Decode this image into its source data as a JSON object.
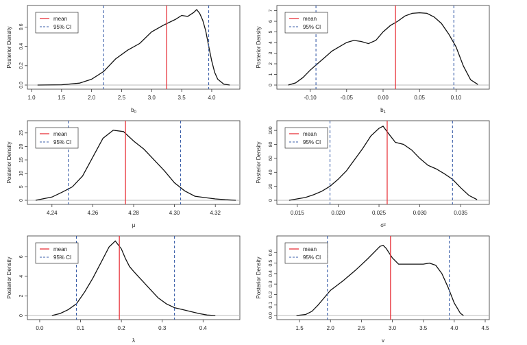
{
  "colors": {
    "density": "#111111",
    "mean": "#e8333a",
    "ci": "#3a5ea8",
    "baseline": "#b8b8b8"
  },
  "legend": {
    "mean_label": "mean",
    "ci_label": "95% CI"
  },
  "chart_data": [
    {
      "type": "line",
      "panel": "b0",
      "xlabel": "b0",
      "ylabel": "Posterior Density",
      "xlim": [
        1.0,
        4.4
      ],
      "ylim": [
        0,
        0.78
      ],
      "xticks": [
        "1.0",
        "1.5",
        "2.0",
        "2.5",
        "3.0",
        "3.5",
        "4.0"
      ],
      "xtick_values": [
        1.0,
        1.5,
        2.0,
        2.5,
        3.0,
        3.5,
        4.0
      ],
      "yticks": [
        "0.0",
        "0.2",
        "0.4",
        "0.6"
      ],
      "ytick_values": [
        0,
        0.2,
        0.4,
        0.6
      ],
      "mean": 3.25,
      "ci": [
        2.2,
        3.95
      ],
      "series": [
        {
          "x": [
            1.1,
            1.5,
            1.8,
            2.0,
            2.2,
            2.4,
            2.6,
            2.8,
            3.0,
            3.2,
            3.4,
            3.5,
            3.6,
            3.7,
            3.75,
            3.8,
            3.85,
            3.9,
            3.95,
            4.0,
            4.05,
            4.1,
            4.2,
            4.3
          ],
          "y": [
            0,
            0.003,
            0.02,
            0.06,
            0.14,
            0.27,
            0.36,
            0.43,
            0.55,
            0.62,
            0.68,
            0.72,
            0.71,
            0.75,
            0.78,
            0.74,
            0.67,
            0.56,
            0.4,
            0.25,
            0.13,
            0.06,
            0.01,
            0
          ]
        }
      ]
    },
    {
      "type": "line",
      "panel": "b1",
      "xlabel": "b1",
      "ylabel": "Posterior Density",
      "xlim": [
        -0.14,
        0.14
      ],
      "ylim": [
        0,
        7.1
      ],
      "xticks": [
        "-0.10",
        "-0.05",
        "0.00",
        "0.05",
        "0.10"
      ],
      "xtick_values": [
        -0.1,
        -0.05,
        0,
        0.05,
        0.1
      ],
      "yticks": [
        "0",
        "1",
        "2",
        "3",
        "4",
        "5",
        "6",
        "7"
      ],
      "ytick_values": [
        0,
        1,
        2,
        3,
        4,
        5,
        6,
        7
      ],
      "mean": 0.017,
      "ci": [
        -0.092,
        0.097
      ],
      "series": [
        {
          "x": [
            -0.13,
            -0.12,
            -0.11,
            -0.1,
            -0.09,
            -0.08,
            -0.07,
            -0.06,
            -0.05,
            -0.04,
            -0.03,
            -0.02,
            -0.01,
            0,
            0.01,
            0.02,
            0.03,
            0.04,
            0.05,
            0.06,
            0.07,
            0.08,
            0.09,
            0.1,
            0.11,
            0.12,
            0.13
          ],
          "y": [
            0,
            0.2,
            0.7,
            1.4,
            2.0,
            2.6,
            3.2,
            3.6,
            4.0,
            4.2,
            4.1,
            3.9,
            4.2,
            5.0,
            5.6,
            6.0,
            6.5,
            6.75,
            6.8,
            6.75,
            6.4,
            5.8,
            4.8,
            3.6,
            1.8,
            0.5,
            0.05
          ]
        }
      ]
    },
    {
      "type": "line",
      "panel": "mu",
      "xlabel": "μ",
      "ylabel": "Posterior Density",
      "xlim": [
        4.23,
        4.33
      ],
      "ylim": [
        0,
        28
      ],
      "xticks": [
        "4.24",
        "4.26",
        "4.28",
        "4.30",
        "4.32"
      ],
      "xtick_values": [
        4.24,
        4.26,
        4.28,
        4.3,
        4.32
      ],
      "yticks": [
        "0",
        "5",
        "10",
        "15",
        "20",
        "25"
      ],
      "ytick_values": [
        0,
        5,
        10,
        15,
        20,
        25
      ],
      "mean": 4.276,
      "ci": [
        4.248,
        4.303
      ],
      "series": [
        {
          "x": [
            4.232,
            4.24,
            4.245,
            4.25,
            4.255,
            4.26,
            4.265,
            4.27,
            4.275,
            4.28,
            4.285,
            4.29,
            4.295,
            4.3,
            4.305,
            4.31,
            4.315,
            4.32,
            4.325,
            4.33
          ],
          "y": [
            0,
            1.2,
            3.0,
            5.0,
            9.0,
            16.0,
            23.0,
            26.0,
            25.5,
            22.0,
            19.0,
            15.0,
            11.0,
            6.5,
            3.5,
            1.5,
            1.0,
            0.5,
            0.2,
            0
          ]
        }
      ]
    },
    {
      "type": "line",
      "panel": "sigma2",
      "xlabel": "σ²",
      "ylabel": "Posterior Density",
      "xlim": [
        0.013,
        0.038
      ],
      "ylim": [
        0,
        108
      ],
      "xticks": [
        "0.015",
        "0.020",
        "0.025",
        "0.030",
        "0.035"
      ],
      "xtick_values": [
        0.015,
        0.02,
        0.025,
        0.03,
        0.035
      ],
      "yticks": [
        "0",
        "20",
        "40",
        "60",
        "80",
        "100"
      ],
      "ytick_values": [
        0,
        20,
        40,
        60,
        80,
        100
      ],
      "mean": 0.026,
      "ci": [
        0.019,
        0.034
      ],
      "series": [
        {
          "x": [
            0.014,
            0.016,
            0.017,
            0.018,
            0.019,
            0.02,
            0.021,
            0.022,
            0.023,
            0.024,
            0.025,
            0.0255,
            0.026,
            0.027,
            0.028,
            0.029,
            0.03,
            0.031,
            0.032,
            0.033,
            0.034,
            0.035,
            0.036,
            0.037
          ],
          "y": [
            0,
            4,
            8,
            13,
            20,
            30,
            42,
            58,
            74,
            92,
            103,
            106,
            98,
            83,
            80,
            72,
            60,
            50,
            45,
            38,
            30,
            18,
            7,
            1
          ]
        }
      ]
    },
    {
      "type": "line",
      "panel": "lambda",
      "xlabel": "λ",
      "ylabel": "Posterior Density",
      "xlim": [
        -0.02,
        0.48
      ],
      "ylim": [
        0,
        7.7
      ],
      "xticks": [
        "0.0",
        "0.1",
        "0.2",
        "0.3",
        "0.4"
      ],
      "xtick_values": [
        0,
        0.1,
        0.2,
        0.3,
        0.4
      ],
      "yticks": [
        "0",
        "2",
        "4",
        "6"
      ],
      "ytick_values": [
        0,
        2,
        4,
        6
      ],
      "mean": 0.195,
      "ci": [
        0.09,
        0.33
      ],
      "series": [
        {
          "x": [
            0.03,
            0.05,
            0.07,
            0.09,
            0.11,
            0.13,
            0.15,
            0.17,
            0.185,
            0.2,
            0.21,
            0.22,
            0.23,
            0.25,
            0.27,
            0.29,
            0.31,
            0.33,
            0.35,
            0.37,
            0.39,
            0.41,
            0.43
          ],
          "y": [
            0,
            0.2,
            0.6,
            1.2,
            2.4,
            3.8,
            5.4,
            7.0,
            7.6,
            6.8,
            5.8,
            5.0,
            4.5,
            3.6,
            2.7,
            1.8,
            1.2,
            0.8,
            0.6,
            0.4,
            0.2,
            0.05,
            0
          ]
        }
      ]
    },
    {
      "type": "line",
      "panel": "v",
      "xlabel": "v",
      "ylabel": "Posterior Density",
      "xlim": [
        1.2,
        4.5
      ],
      "ylim": [
        0,
        0.72
      ],
      "xticks": [
        "1.5",
        "2.0",
        "2.5",
        "3.0",
        "3.5",
        "4.0",
        "4.5"
      ],
      "xtick_values": [
        1.5,
        2,
        2.5,
        3,
        3.5,
        4,
        4.5
      ],
      "yticks": [
        "0.0",
        "0.1",
        "0.2",
        "0.3",
        "0.4",
        "0.5",
        "0.6"
      ],
      "ytick_values": [
        0,
        0.1,
        0.2,
        0.3,
        0.4,
        0.5,
        0.6
      ],
      "mean": 2.97,
      "ci": [
        1.95,
        3.92
      ],
      "series": [
        {
          "x": [
            1.45,
            1.6,
            1.7,
            1.8,
            1.9,
            2.0,
            2.2,
            2.4,
            2.6,
            2.8,
            2.85,
            2.9,
            3.0,
            3.1,
            3.3,
            3.5,
            3.6,
            3.7,
            3.8,
            3.9,
            4.0,
            4.1,
            4.15
          ],
          "y": [
            0,
            0.01,
            0.04,
            0.1,
            0.17,
            0.24,
            0.33,
            0.43,
            0.54,
            0.66,
            0.67,
            0.64,
            0.55,
            0.49,
            0.49,
            0.49,
            0.5,
            0.48,
            0.4,
            0.27,
            0.12,
            0.02,
            0
          ]
        }
      ]
    }
  ]
}
